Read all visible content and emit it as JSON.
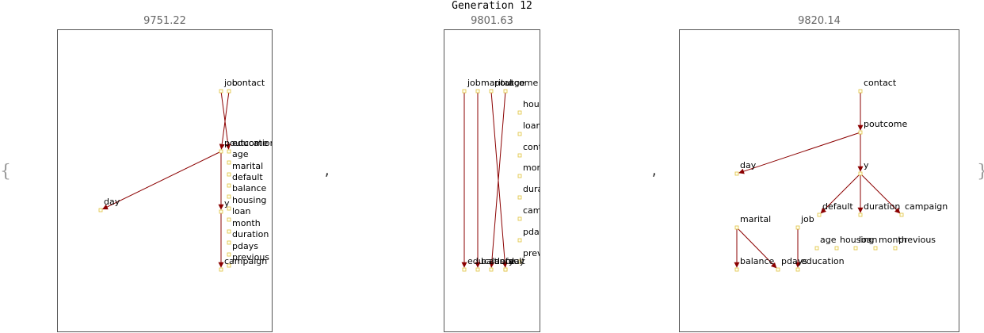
{
  "title": "Generation 12",
  "brace_open": "{",
  "brace_close": "}",
  "separator": ",",
  "colors": {
    "edge": "#8b0000",
    "node_fill": "#ffffee",
    "node_stroke": "#e0c040",
    "frame": "#555555",
    "score": "#666666"
  },
  "graphs": [
    {
      "score": "9751.22",
      "nodes": [
        {
          "id": "contact",
          "label": "contact"
        },
        {
          "id": "job",
          "label": "job"
        },
        {
          "id": "poutcome",
          "label": "poutcome"
        },
        {
          "id": "education",
          "label": "education"
        },
        {
          "id": "age",
          "label": "age"
        },
        {
          "id": "marital",
          "label": "marital"
        },
        {
          "id": "default",
          "label": "default"
        },
        {
          "id": "balance",
          "label": "balance"
        },
        {
          "id": "housing",
          "label": "housing"
        },
        {
          "id": "y",
          "label": "y"
        },
        {
          "id": "loan",
          "label": "loan"
        },
        {
          "id": "month",
          "label": "month"
        },
        {
          "id": "duration",
          "label": "duration"
        },
        {
          "id": "pdays",
          "label": "pdays"
        },
        {
          "id": "previous",
          "label": "previous"
        },
        {
          "id": "campaign",
          "label": "campaign"
        },
        {
          "id": "day",
          "label": "day"
        }
      ],
      "edges": [
        [
          "contact",
          "poutcome"
        ],
        [
          "job",
          "education"
        ],
        [
          "poutcome",
          "day"
        ],
        [
          "poutcome",
          "y"
        ],
        [
          "y",
          "campaign"
        ]
      ]
    },
    {
      "score": "9801.63",
      "nodes": [
        {
          "id": "job",
          "label": "job"
        },
        {
          "id": "marital",
          "label": "marital"
        },
        {
          "id": "poutcome",
          "label": "poutcome"
        },
        {
          "id": "age",
          "label": "age"
        },
        {
          "id": "housing",
          "label": "housing"
        },
        {
          "id": "loan",
          "label": "loan"
        },
        {
          "id": "contact",
          "label": "contact"
        },
        {
          "id": "month",
          "label": "month"
        },
        {
          "id": "duration",
          "label": "duration"
        },
        {
          "id": "campaign",
          "label": "campaign"
        },
        {
          "id": "pdays",
          "label": "pdays"
        },
        {
          "id": "previous",
          "label": "previous"
        },
        {
          "id": "education",
          "label": "education"
        },
        {
          "id": "balance",
          "label": "balance"
        },
        {
          "id": "default",
          "label": "default"
        },
        {
          "id": "y",
          "label": "y"
        },
        {
          "id": "day",
          "label": "day"
        }
      ],
      "edges": [
        [
          "job",
          "education"
        ],
        [
          "marital",
          "balance"
        ],
        [
          "age",
          "default"
        ],
        [
          "poutcome",
          "y"
        ]
      ]
    },
    {
      "score": "9820.14",
      "nodes": [
        {
          "id": "contact",
          "label": "contact"
        },
        {
          "id": "poutcome",
          "label": "poutcome"
        },
        {
          "id": "day",
          "label": "day"
        },
        {
          "id": "y",
          "label": "y"
        },
        {
          "id": "default",
          "label": "default"
        },
        {
          "id": "duration",
          "label": "duration"
        },
        {
          "id": "campaign",
          "label": "campaign"
        },
        {
          "id": "marital",
          "label": "marital"
        },
        {
          "id": "job",
          "label": "job"
        },
        {
          "id": "age",
          "label": "age"
        },
        {
          "id": "housing",
          "label": "housing"
        },
        {
          "id": "loan",
          "label": "loan"
        },
        {
          "id": "month",
          "label": "month"
        },
        {
          "id": "previous",
          "label": "previous"
        },
        {
          "id": "balance",
          "label": "balance"
        },
        {
          "id": "pdays",
          "label": "pdays"
        },
        {
          "id": "education",
          "label": "education"
        }
      ],
      "edges": [
        [
          "contact",
          "poutcome"
        ],
        [
          "poutcome",
          "day"
        ],
        [
          "poutcome",
          "y"
        ],
        [
          "y",
          "default"
        ],
        [
          "y",
          "duration"
        ],
        [
          "y",
          "campaign"
        ],
        [
          "marital",
          "balance"
        ],
        [
          "marital",
          "pdays"
        ],
        [
          "job",
          "education"
        ]
      ]
    }
  ]
}
